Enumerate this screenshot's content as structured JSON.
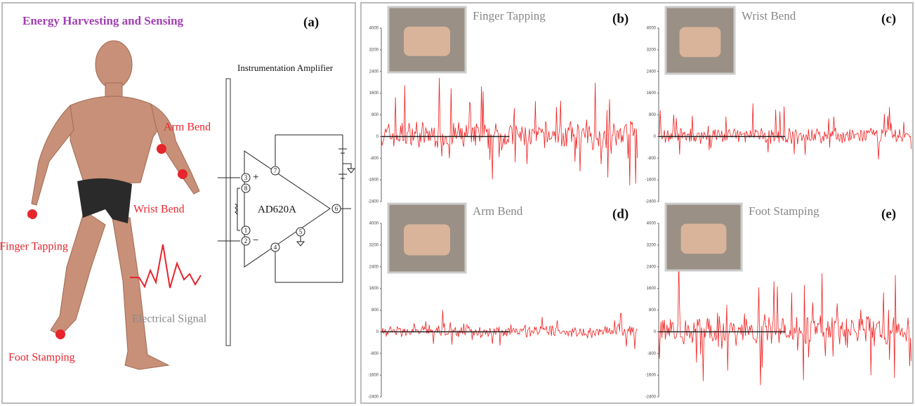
{
  "panel_a": {
    "title": "Energy Harvesting and Sensing",
    "label": "(a)",
    "body_points": [
      "Arm Bend",
      "Wrist Bend",
      "Finger Tapping",
      "Foot Stamping"
    ],
    "signal_label": "Electrical Signal",
    "amplifier": {
      "title": "Instrumentation Amplifier",
      "chip": "AD620A",
      "pins": [
        "3",
        "8",
        "1",
        "2",
        "7",
        "6",
        "5",
        "4"
      ],
      "plus": "+",
      "minus": "−"
    }
  },
  "signal_panels": {
    "ylim": [
      -2400,
      4000
    ],
    "yticks": [
      4000,
      3200,
      2400,
      1600,
      800,
      0,
      -800,
      -1600,
      -2400
    ],
    "panels": [
      {
        "label": "(b)",
        "title": "Finger Tapping"
      },
      {
        "label": "(c)",
        "title": "Wrist Bend"
      },
      {
        "label": "(d)",
        "title": "Arm Bend"
      },
      {
        "label": "(e)",
        "title": "Foot Stamping"
      }
    ]
  }
}
